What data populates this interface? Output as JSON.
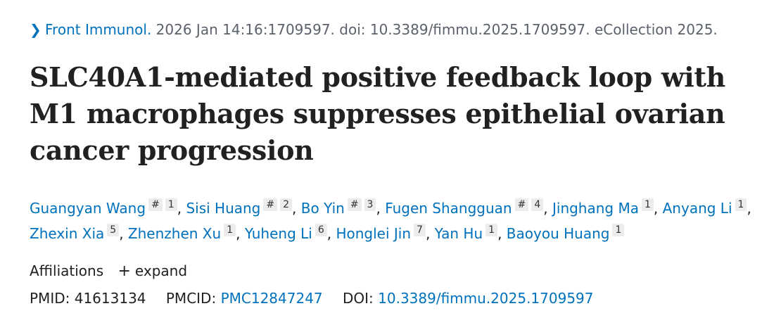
{
  "citation": {
    "journal": "Front Immunol.",
    "rest": " 2026 Jan 14:16:1709597. doi: 10.3389/fimmu.2025.1709597. eCollection 2025."
  },
  "title": "SLC40A1-mediated positive feedback loop with M1 macrophages suppresses epithelial ovarian cancer progression",
  "authors": [
    {
      "name": "Guangyan Wang",
      "sup": [
        "#",
        "1"
      ]
    },
    {
      "name": "Sisi Huang",
      "sup": [
        "#",
        "2"
      ]
    },
    {
      "name": "Bo Yin",
      "sup": [
        "#",
        "3"
      ]
    },
    {
      "name": "Fugen Shangguan",
      "sup": [
        "#",
        "4"
      ]
    },
    {
      "name": "Jinghang Ma",
      "sup": [
        "1"
      ]
    },
    {
      "name": "Anyang Li",
      "sup": [
        "1"
      ]
    },
    {
      "name": "Zhexin Xia",
      "sup": [
        "5"
      ]
    },
    {
      "name": "Zhenzhen Xu",
      "sup": [
        "1"
      ]
    },
    {
      "name": "Yuheng Li",
      "sup": [
        "6"
      ]
    },
    {
      "name": "Honglei Jin",
      "sup": [
        "7"
      ]
    },
    {
      "name": "Yan Hu",
      "sup": [
        "1"
      ]
    },
    {
      "name": "Baoyou Huang",
      "sup": [
        "1"
      ]
    }
  ],
  "affiliations": {
    "label": "Affiliations",
    "expand_label": "expand"
  },
  "ids": {
    "pmid_label": "PMID:",
    "pmid": "41613134",
    "pmcid_label": "PMCID:",
    "pmcid": "PMC12847247",
    "doi_label": "DOI:",
    "doi": "10.3389/fimmu.2025.1709597"
  }
}
